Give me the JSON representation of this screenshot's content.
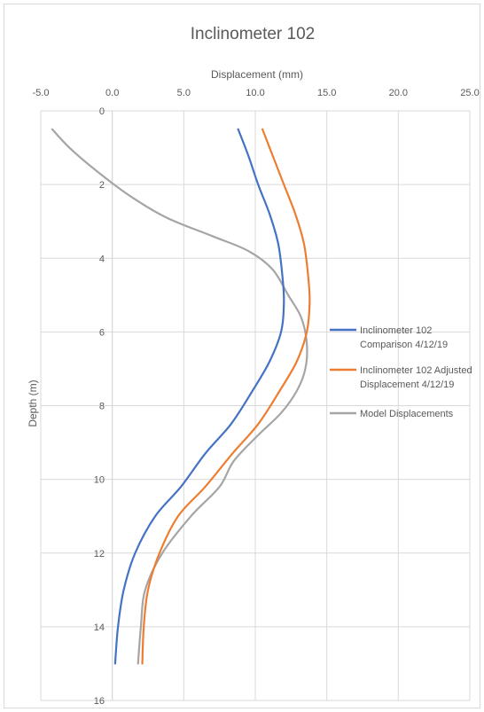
{
  "chart_data": {
    "type": "line",
    "title": "Inclinometer 102",
    "xlabel": "Displacement (mm)",
    "ylabel": "Depth (m)",
    "xlim": [
      -5,
      25
    ],
    "ylim": [
      0,
      16
    ],
    "y_inverted": true,
    "x_axis_position": "top",
    "x_ticks": [
      "-5.0",
      "0.0",
      "5.0",
      "10.0",
      "15.0",
      "20.0",
      "25.0"
    ],
    "y_ticks": [
      "0",
      "2",
      "4",
      "6",
      "8",
      "10",
      "12",
      "14",
      "16"
    ],
    "grid": true,
    "legend_position": "right",
    "series": [
      {
        "name": "Inclinometer 102 Comparison 4/12/19",
        "color": "#4472c4",
        "points": [
          [
            8.8,
            0.5
          ],
          [
            9.5,
            1.2
          ],
          [
            10.2,
            2.0
          ],
          [
            11.0,
            2.8
          ],
          [
            11.6,
            3.6
          ],
          [
            11.9,
            4.5
          ],
          [
            12.0,
            5.2
          ],
          [
            11.8,
            6.0
          ],
          [
            11.0,
            6.8
          ],
          [
            9.8,
            7.6
          ],
          [
            8.3,
            8.5
          ],
          [
            6.5,
            9.3
          ],
          [
            4.8,
            10.2
          ],
          [
            3.0,
            11.0
          ],
          [
            1.6,
            12.0
          ],
          [
            0.8,
            13.0
          ],
          [
            0.4,
            14.0
          ],
          [
            0.2,
            15.0
          ]
        ]
      },
      {
        "name": "Inclinometer 102 Adjusted Displacement 4/12/19",
        "color": "#ed7d31",
        "points": [
          [
            10.5,
            0.5
          ],
          [
            11.2,
            1.2
          ],
          [
            12.0,
            2.0
          ],
          [
            12.8,
            2.8
          ],
          [
            13.4,
            3.6
          ],
          [
            13.7,
            4.5
          ],
          [
            13.8,
            5.2
          ],
          [
            13.6,
            6.0
          ],
          [
            12.9,
            6.8
          ],
          [
            11.7,
            7.6
          ],
          [
            10.2,
            8.5
          ],
          [
            8.4,
            9.3
          ],
          [
            6.5,
            10.2
          ],
          [
            4.6,
            11.0
          ],
          [
            3.3,
            12.0
          ],
          [
            2.5,
            13.0
          ],
          [
            2.2,
            14.0
          ],
          [
            2.1,
            15.0
          ]
        ]
      },
      {
        "name": "Model Displacements",
        "color": "#a5a5a5",
        "points": [
          [
            -4.2,
            0.5
          ],
          [
            -3.0,
            1.0
          ],
          [
            -1.2,
            1.6
          ],
          [
            1.2,
            2.3
          ],
          [
            3.8,
            2.9
          ],
          [
            7.0,
            3.4
          ],
          [
            9.5,
            3.8
          ],
          [
            11.2,
            4.3
          ],
          [
            12.3,
            5.0
          ],
          [
            13.2,
            5.6
          ],
          [
            13.6,
            6.3
          ],
          [
            13.5,
            7.0
          ],
          [
            12.9,
            7.6
          ],
          [
            11.8,
            8.2
          ],
          [
            10.2,
            8.8
          ],
          [
            8.5,
            9.5
          ],
          [
            7.5,
            10.2
          ],
          [
            5.5,
            11.0
          ],
          [
            3.5,
            12.0
          ],
          [
            2.3,
            13.0
          ],
          [
            2.0,
            14.0
          ],
          [
            1.8,
            15.0
          ]
        ]
      }
    ],
    "legend": [
      {
        "line1": "Inclinometer 102",
        "line2": "Comparison 4/12/19"
      },
      {
        "line1": "Inclinometer 102 Adjusted",
        "line2": "Displacement 4/12/19"
      },
      {
        "line1": "Model Displacements",
        "line2": ""
      }
    ]
  }
}
